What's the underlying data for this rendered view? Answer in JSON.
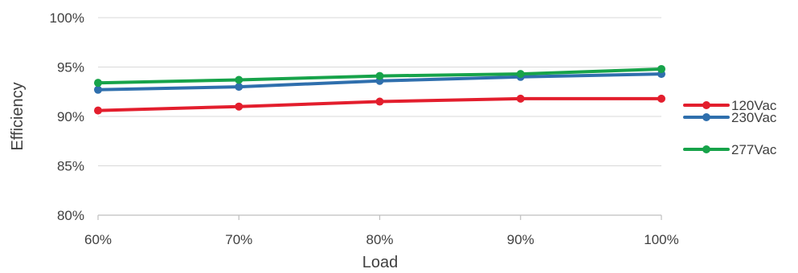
{
  "chart_data": {
    "type": "line",
    "title": "",
    "xlabel": "Load",
    "ylabel": "Efficiency",
    "categories": [
      "60%",
      "70%",
      "80%",
      "90%",
      "100%"
    ],
    "ylim": [
      80,
      100
    ],
    "yticks": [
      "80%",
      "85%",
      "90%",
      "95%",
      "100%"
    ],
    "ytick_values": [
      80,
      85,
      90,
      95,
      100
    ],
    "grid": "horizontal",
    "legend_position": "right",
    "series": [
      {
        "name": "120Vac",
        "color": "#e31e2d",
        "values": [
          90.6,
          91.0,
          91.5,
          91.8,
          91.8
        ]
      },
      {
        "name": "230Vac",
        "color": "#2f6fad",
        "values": [
          92.7,
          93.0,
          93.6,
          94.0,
          94.3
        ]
      },
      {
        "name": "277Vac",
        "color": "#17a34a",
        "values": [
          93.4,
          93.7,
          94.1,
          94.3,
          94.8
        ]
      }
    ]
  }
}
